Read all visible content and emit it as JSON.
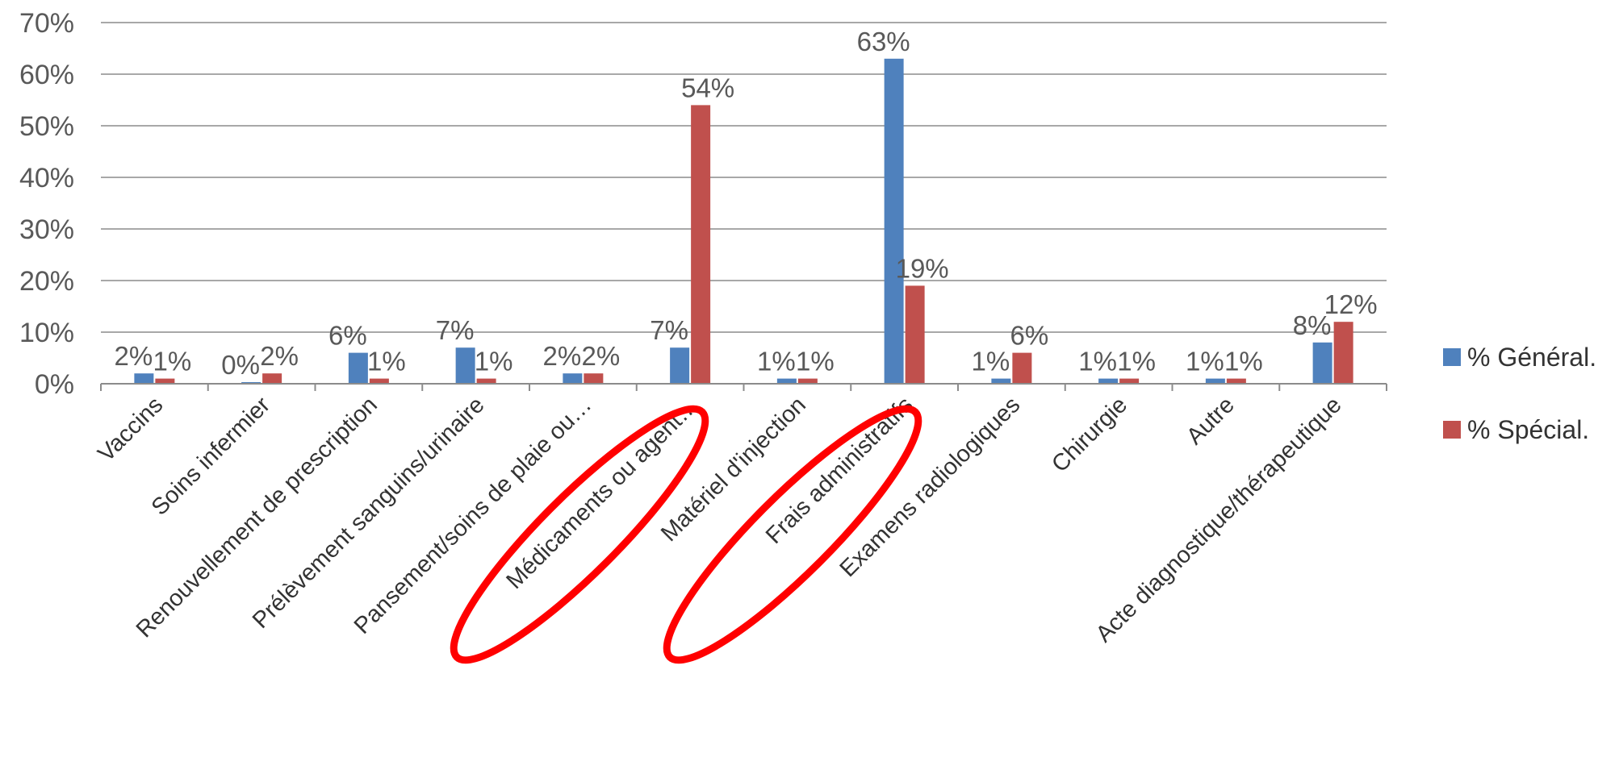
{
  "chart_data": {
    "type": "bar",
    "categories": [
      "Vaccins",
      "Soins infermier",
      "Renouvellement de prescription",
      "Prélèvement sanguins/urinaire",
      "Pansement/soins de plaie ou…",
      "Médicaments ou agent…",
      "Matériel d'injection",
      "Frais administratifs",
      "Examens radiologiques",
      "Chirurgie",
      "Autre",
      "Acte diagnostique/thérapeutique"
    ],
    "series": [
      {
        "name": "% Général.",
        "color": "#4F81BD",
        "values": [
          2,
          0,
          6,
          7,
          2,
          7,
          1,
          63,
          1,
          1,
          1,
          8
        ],
        "labels": [
          "2%",
          "0%",
          "6%",
          "7%",
          "2%",
          "7%",
          "1%",
          "63%",
          "1%",
          "1%",
          "1%",
          "8%"
        ]
      },
      {
        "name": "% Spécial.",
        "color": "#C0504D",
        "values": [
          1,
          2,
          1,
          1,
          2,
          54,
          1,
          19,
          6,
          1,
          1,
          12
        ],
        "labels": [
          "1%",
          "2%",
          "1%",
          "1%",
          "2%",
          "54%",
          "1%",
          "19%",
          "6%",
          "1%",
          "1%",
          "12%"
        ]
      }
    ],
    "y_ticks": [
      "0%",
      "10%",
      "20%",
      "30%",
      "40%",
      "50%",
      "60%",
      "70%"
    ],
    "ylim": [
      0,
      70
    ],
    "grid": true,
    "legend_position": "right",
    "annotations": [
      {
        "type": "ellipse",
        "color": "#FF0000",
        "target": "Médicaments ou agent…"
      },
      {
        "type": "ellipse",
        "color": "#FF0000",
        "target": "Frais administratifs"
      }
    ]
  }
}
